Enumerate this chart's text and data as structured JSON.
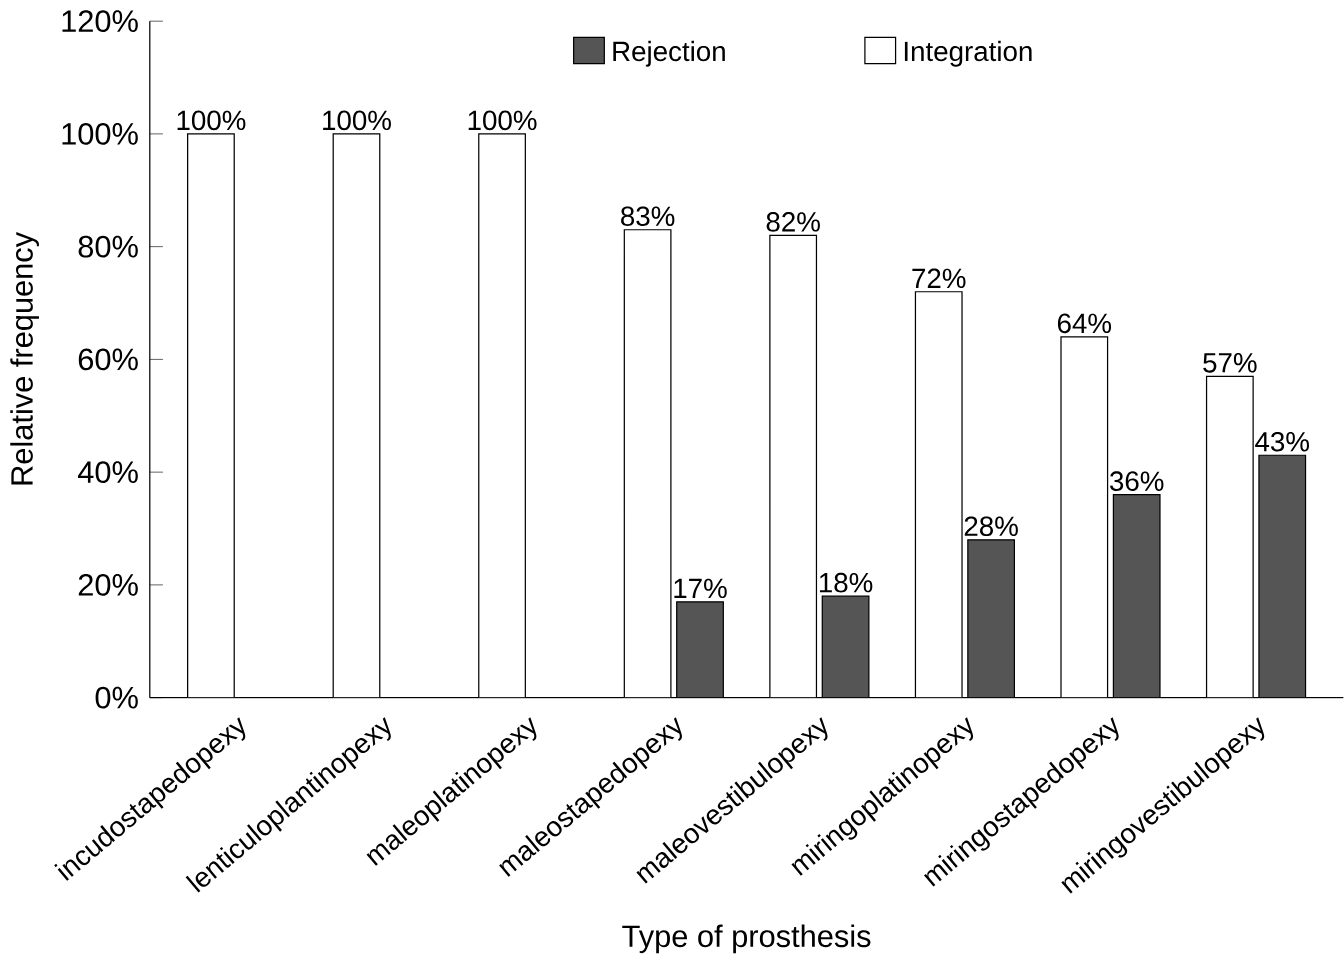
{
  "chart_data": {
    "type": "bar",
    "xlabel": "Type of prosthesis",
    "ylabel": "Relative frequency",
    "categories": [
      "incudostapedopexy",
      "lenticuloplantinopexy",
      "maleoplatinopexy",
      "maleostapedopexy",
      "maleovestibulopexy",
      "miringoplatinopexy",
      "miringostapedopexy",
      "miringovestibulopexy"
    ],
    "series": [
      {
        "name": "Integration",
        "color": "#ffffff",
        "values": [
          100,
          100,
          100,
          83,
          82,
          72,
          64,
          57
        ],
        "value_labels": [
          "100%",
          "100%",
          "100%",
          "83%",
          "82%",
          "72%",
          "64%",
          "57%"
        ]
      },
      {
        "name": "Rejection",
        "color": "#555555",
        "values": [
          null,
          null,
          null,
          17,
          18,
          28,
          36,
          43
        ],
        "value_labels": [
          null,
          null,
          null,
          "17%",
          "18%",
          "28%",
          "36%",
          "43%"
        ]
      }
    ],
    "ylim": [
      0,
      120
    ],
    "yticks": [
      {
        "value": 0,
        "label": "0%"
      },
      {
        "value": 20,
        "label": "20%"
      },
      {
        "value": 40,
        "label": "40%"
      },
      {
        "value": 60,
        "label": "60%"
      },
      {
        "value": 80,
        "label": "80%"
      },
      {
        "value": 100,
        "label": "100%"
      },
      {
        "value": 120,
        "label": "120%"
      }
    ],
    "legend": "top",
    "grid": false
  }
}
